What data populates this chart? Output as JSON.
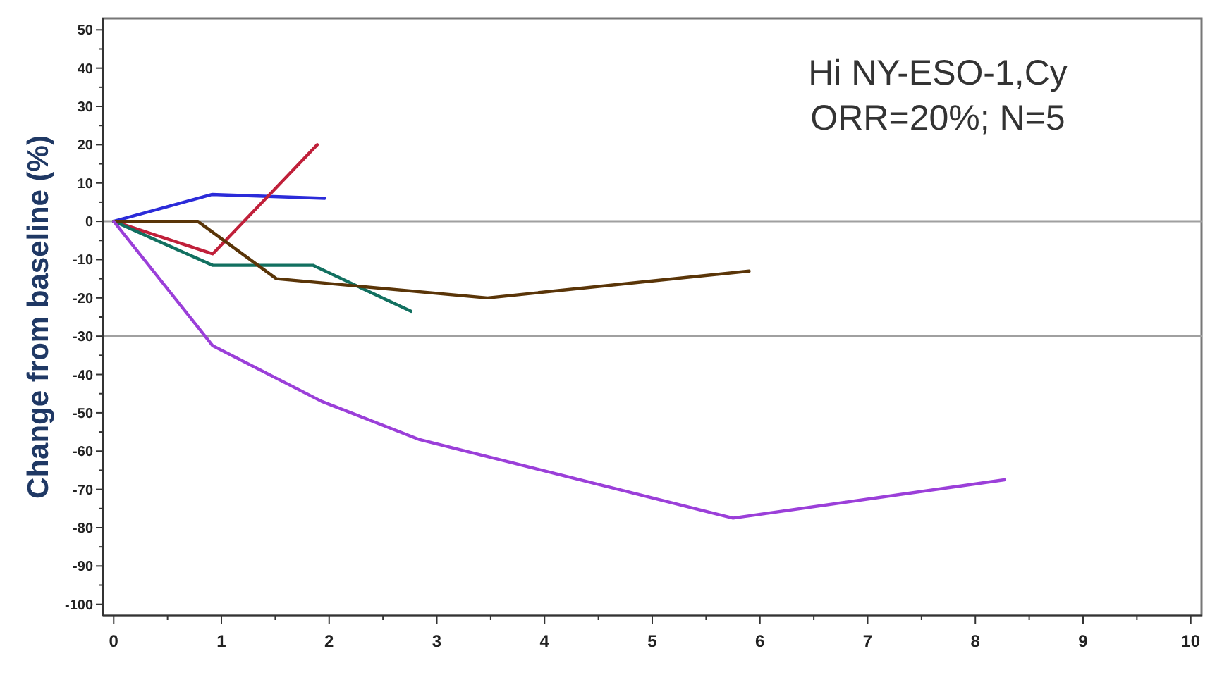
{
  "chart_data": {
    "type": "line",
    "ylabel": "Change from baseline (%)",
    "annotations": [
      "Hi NY-ESO-1,Cy",
      "ORR=20%; N=5"
    ],
    "xlim": [
      -0.1,
      10.1
    ],
    "xticks": [
      0,
      1,
      2,
      3,
      4,
      5,
      6,
      7,
      8,
      9,
      10
    ],
    "ylim": [
      -103,
      53
    ],
    "yticks": [
      -100,
      -90,
      -80,
      -70,
      -60,
      -50,
      -40,
      -30,
      -20,
      -10,
      0,
      10,
      20,
      30,
      40,
      50
    ],
    "grid": false,
    "line_style": "solid",
    "ref_lines": [
      {
        "axis": "y",
        "value": 0,
        "color": "#a0a0a0"
      },
      {
        "axis": "y",
        "value": -30,
        "color": "#a0a0a0"
      }
    ],
    "series": [
      {
        "color": "#2b2bd9",
        "x": [
          0,
          0.91,
          1.96
        ],
        "values": [
          0,
          7,
          6
        ]
      },
      {
        "color": "#c0203a",
        "x": [
          0,
          0.92,
          1.89
        ],
        "values": [
          0,
          -8.5,
          20
        ]
      },
      {
        "color": "#127060",
        "x": [
          0,
          0.92,
          1.85,
          2.76
        ],
        "values": [
          0,
          -11.5,
          -11.5,
          -23.5
        ]
      },
      {
        "color": "#5a3508",
        "x": [
          0,
          0.78,
          1.51,
          3.47,
          5.9
        ],
        "values": [
          0,
          0,
          -15,
          -20,
          -13
        ]
      },
      {
        "color": "#9b3fd9",
        "x": [
          0,
          0.92,
          1.93,
          2.84,
          5.75,
          8.27
        ],
        "values": [
          0,
          -32.5,
          -47,
          -57,
          -77.5,
          -67.5
        ]
      }
    ]
  }
}
